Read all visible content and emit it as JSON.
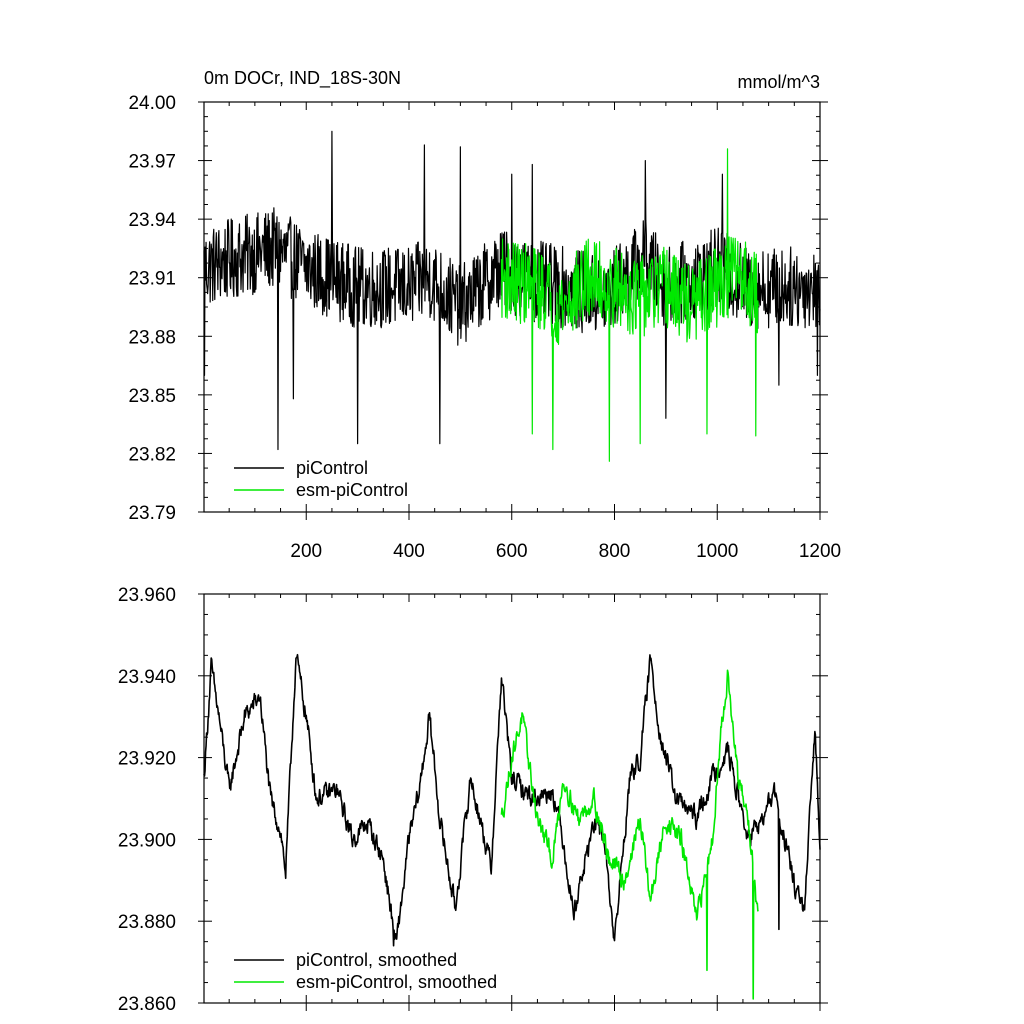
{
  "chart_data": [
    {
      "type": "line",
      "title": "0m DOCr, IND_18S-30N",
      "units": "mmol/m^3",
      "xlim": [
        1,
        1200
      ],
      "ylim": [
        23.79,
        24.0
      ],
      "x_ticks": [
        200,
        400,
        600,
        800,
        1000,
        1200
      ],
      "x_tick_labels": [
        "200",
        "400",
        "600",
        "800",
        "1000",
        "1200"
      ],
      "y_ticks": [
        23.79,
        23.82,
        23.85,
        23.88,
        23.91,
        23.94,
        23.97,
        24.0
      ],
      "y_tick_labels": [
        "23.79",
        "23.82",
        "23.85",
        "23.88",
        "23.91",
        "23.94",
        "23.97",
        "24.00"
      ],
      "legend": {
        "position": "bottom-left",
        "entries": [
          "piControl",
          "esm-piControl"
        ]
      },
      "series": [
        {
          "name": "piControl",
          "color": "#000000",
          "x_range": [
            1,
            1200
          ],
          "noise": "high",
          "anchors": [
            [
              1,
              23.915
            ],
            [
              60,
              23.92
            ],
            [
              140,
              23.925
            ],
            [
              200,
              23.915
            ],
            [
              300,
              23.905
            ],
            [
              400,
              23.905
            ],
            [
              440,
              23.91
            ],
            [
              500,
              23.895
            ],
            [
              580,
              23.915
            ],
            [
              620,
              23.91
            ],
            [
              700,
              23.905
            ],
            [
              780,
              23.9
            ],
            [
              860,
              23.92
            ],
            [
              900,
              23.905
            ],
            [
              960,
              23.91
            ],
            [
              1000,
              23.915
            ],
            [
              1060,
              23.905
            ],
            [
              1100,
              23.905
            ],
            [
              1200,
              23.905
            ]
          ],
          "spikes": [
            [
              2,
              23.86
            ],
            [
              145,
              23.822
            ],
            [
              175,
              23.848
            ],
            [
              250,
              23.985
            ],
            [
              300,
              23.825
            ],
            [
              430,
              23.978
            ],
            [
              460,
              23.825
            ],
            [
              500,
              23.977
            ],
            [
              600,
              23.963
            ],
            [
              640,
              23.968
            ],
            [
              860,
              23.97
            ],
            [
              900,
              23.838
            ],
            [
              1010,
              23.963
            ],
            [
              1120,
              23.855
            ],
            [
              1195,
              23.86
            ]
          ]
        },
        {
          "name": "esm-piControl",
          "color": "#00e800",
          "x_range": [
            580,
            1080
          ],
          "noise": "high",
          "anchors": [
            [
              580,
              23.91
            ],
            [
              650,
              23.905
            ],
            [
              700,
              23.895
            ],
            [
              750,
              23.91
            ],
            [
              800,
              23.905
            ],
            [
              850,
              23.9
            ],
            [
              900,
              23.905
            ],
            [
              950,
              23.895
            ],
            [
              1000,
              23.905
            ],
            [
              1040,
              23.915
            ],
            [
              1080,
              23.9
            ]
          ],
          "spikes": [
            [
              640,
              23.83
            ],
            [
              680,
              23.822
            ],
            [
              790,
              23.816
            ],
            [
              850,
              23.825
            ],
            [
              980,
              23.83
            ],
            [
              1020,
              23.976
            ],
            [
              1075,
              23.829
            ]
          ]
        }
      ]
    },
    {
      "type": "line",
      "xlim": [
        1,
        1200
      ],
      "ylim": [
        23.86,
        23.96
      ],
      "x_ticks": [
        200,
        400,
        600,
        800,
        1000,
        1200
      ],
      "y_ticks": [
        23.86,
        23.88,
        23.9,
        23.92,
        23.94,
        23.96
      ],
      "y_tick_labels": [
        "23.860",
        "23.880",
        "23.900",
        "23.920",
        "23.940",
        "23.960"
      ],
      "legend": {
        "position": "bottom-left",
        "entries": [
          "piControl, smoothed",
          "esm-piControl, smoothed"
        ]
      },
      "series": [
        {
          "name": "piControl, smoothed",
          "color": "#000000",
          "x_range": [
            1,
            1200
          ],
          "noise": "low",
          "anchors": [
            [
              1,
              23.915
            ],
            [
              15,
              23.942
            ],
            [
              30,
              23.93
            ],
            [
              50,
              23.912
            ],
            [
              80,
              23.93
            ],
            [
              110,
              23.935
            ],
            [
              130,
              23.91
            ],
            [
              150,
              23.902
            ],
            [
              160,
              23.892
            ],
            [
              180,
              23.945
            ],
            [
              200,
              23.93
            ],
            [
              220,
              23.91
            ],
            [
              260,
              23.912
            ],
            [
              290,
              23.9
            ],
            [
              320,
              23.904
            ],
            [
              350,
              23.895
            ],
            [
              375,
              23.874
            ],
            [
              400,
              23.9
            ],
            [
              420,
              23.912
            ],
            [
              440,
              23.93
            ],
            [
              460,
              23.905
            ],
            [
              490,
              23.883
            ],
            [
              520,
              23.915
            ],
            [
              560,
              23.893
            ],
            [
              580,
              23.94
            ],
            [
              600,
              23.915
            ],
            [
              640,
              23.91
            ],
            [
              680,
              23.912
            ],
            [
              700,
              23.9
            ],
            [
              720,
              23.882
            ],
            [
              760,
              23.904
            ],
            [
              780,
              23.9
            ],
            [
              800,
              23.875
            ],
            [
              830,
              23.915
            ],
            [
              850,
              23.92
            ],
            [
              870,
              23.944
            ],
            [
              890,
              23.925
            ],
            [
              920,
              23.91
            ],
            [
              960,
              23.905
            ],
            [
              990,
              23.915
            ],
            [
              1020,
              23.922
            ],
            [
              1060,
              23.9
            ],
            [
              1090,
              23.905
            ],
            [
              1110,
              23.912
            ],
            [
              1150,
              23.889
            ],
            [
              1170,
              23.882
            ],
            [
              1190,
              23.927
            ],
            [
              1200,
              23.9
            ]
          ],
          "spikes": [
            [
              370,
              23.874
            ],
            [
              1120,
              23.878
            ]
          ]
        },
        {
          "name": "esm-piControl, smoothed",
          "color": "#00e800",
          "x_range": [
            580,
            1080
          ],
          "noise": "low",
          "anchors": [
            [
              580,
              23.905
            ],
            [
              600,
              23.92
            ],
            [
              620,
              23.93
            ],
            [
              650,
              23.905
            ],
            [
              680,
              23.895
            ],
            [
              700,
              23.915
            ],
            [
              730,
              23.905
            ],
            [
              760,
              23.91
            ],
            [
              790,
              23.895
            ],
            [
              820,
              23.89
            ],
            [
              850,
              23.905
            ],
            [
              870,
              23.885
            ],
            [
              900,
              23.905
            ],
            [
              930,
              23.9
            ],
            [
              960,
              23.88
            ],
            [
              990,
              23.9
            ],
            [
              1010,
              23.93
            ],
            [
              1020,
              23.94
            ],
            [
              1040,
              23.915
            ],
            [
              1060,
              23.905
            ],
            [
              1080,
              23.88
            ]
          ],
          "spikes": [
            [
              980,
              23.868
            ],
            [
              1070,
              23.861
            ]
          ]
        }
      ]
    }
  ]
}
